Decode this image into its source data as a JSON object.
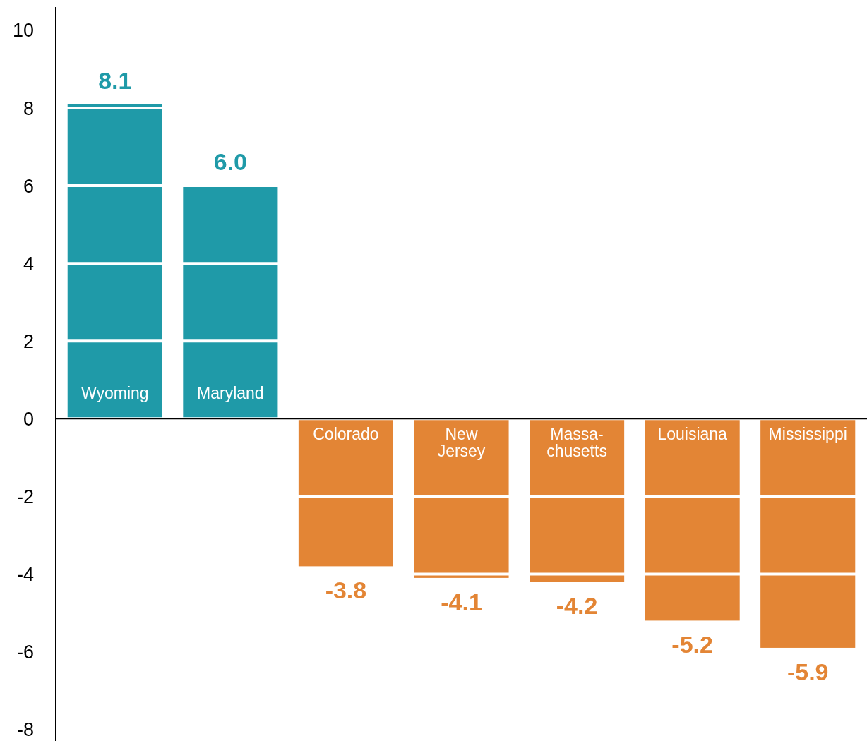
{
  "chart_data": {
    "type": "bar",
    "categories": [
      "Wyoming",
      "Maryland",
      "Colorado",
      "New\nJersey",
      "Massa-\nchusetts",
      "Louisiana",
      "Mississippi"
    ],
    "values": [
      8.1,
      6.0,
      -3.8,
      -4.1,
      -4.2,
      -5.2,
      -5.9
    ],
    "colors": [
      "#1f9aa8",
      "#1f9aa8",
      "#e38535",
      "#e38535",
      "#e38535",
      "#e38535",
      "#e38535"
    ],
    "value_labels": [
      "8.1",
      "6.0",
      "-3.8",
      "-4.1",
      "-4.2",
      "-5.2",
      "-5.9"
    ],
    "ylim": [
      -8.3,
      10.6
    ],
    "yticks": [
      -8,
      -6,
      -4,
      -2,
      0,
      2,
      4,
      6,
      8,
      10
    ],
    "grid": "y"
  }
}
